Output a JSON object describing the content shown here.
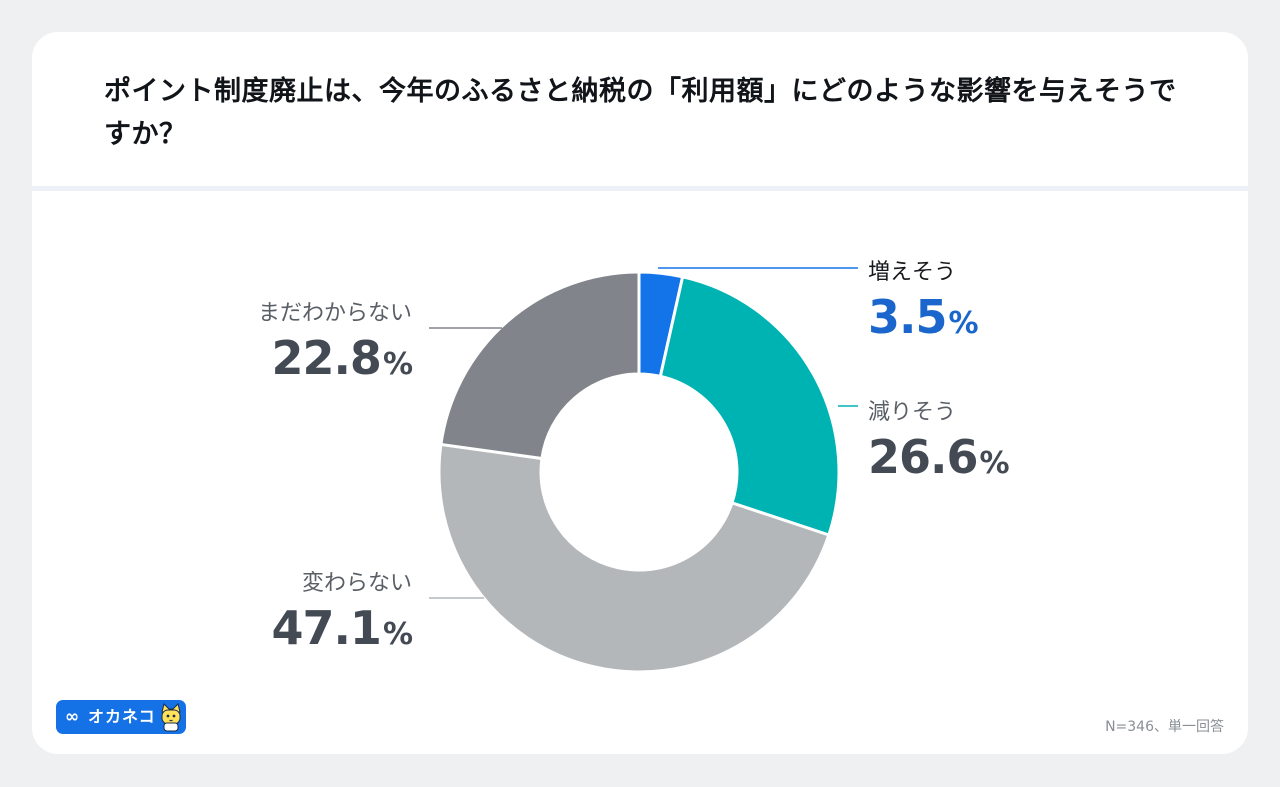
{
  "title": "ポイント制度廃止は、今年のふるさと納税の「利用額」にどのような影響を与えそうですか？",
  "chart_data": {
    "type": "pie",
    "style": "donut",
    "categories": [
      "増えそう",
      "減りそう",
      "変わらない",
      "まだわからない"
    ],
    "values": [
      3.5,
      26.6,
      47.1,
      22.8
    ],
    "value_labels": [
      "3.5",
      "26.6",
      "47.1",
      "22.8"
    ],
    "unit": "%",
    "colors": [
      "#1373e8",
      "#00b3b3",
      "#b4b7ba",
      "#81858b"
    ]
  },
  "labels": {
    "increase": "増えそう",
    "decrease": "減りそう",
    "unchanged": "変わらない",
    "unknown": "まだわからない"
  },
  "values": {
    "increase": "3.5",
    "decrease": "26.6",
    "unchanged": "47.1",
    "unknown": "22.8",
    "unit": "%"
  },
  "brand": {
    "icon": "∞",
    "name": "オカネコ",
    "color": "#1571e6"
  },
  "footnote": "N=346、単一回答"
}
